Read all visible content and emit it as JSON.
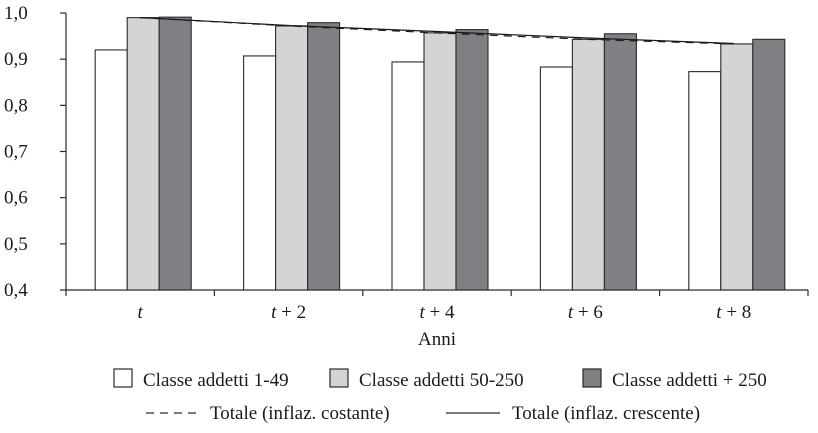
{
  "chart_data": {
    "type": "bar",
    "categories": [
      "t",
      "t + 2",
      "t + 4",
      "t + 6",
      "t + 8"
    ],
    "xlabel": "Anni",
    "ylabel": "",
    "ylim": [
      0.4,
      1.0
    ],
    "yticks": [
      "0,4",
      "0,5",
      "0,6",
      "0,7",
      "0,8",
      "0,9",
      "1,0"
    ],
    "grid": false,
    "legend_position": "bottom",
    "series": [
      {
        "name": "Classe addetti 1-49",
        "values": [
          0.92,
          0.907,
          0.894,
          0.883,
          0.873
        ],
        "color": "#ffffff"
      },
      {
        "name": "Classe addetti 50-250",
        "values": [
          0.99,
          0.972,
          0.957,
          0.943,
          0.933
        ],
        "color": "#d4d4d4"
      },
      {
        "name": "Classe addetti + 250",
        "values": [
          0.991,
          0.979,
          0.964,
          0.955,
          0.943
        ],
        "color": "#7f8083"
      }
    ],
    "lines": [
      {
        "name": "Totale (inflaz. costante)",
        "style": "dashed",
        "values": [
          0.99,
          0.972,
          0.957,
          0.943,
          0.933
        ]
      },
      {
        "name": "Totale (inflaz. crescente)",
        "style": "solid",
        "values": [
          0.99,
          0.973,
          0.96,
          0.946,
          0.934
        ]
      }
    ]
  }
}
